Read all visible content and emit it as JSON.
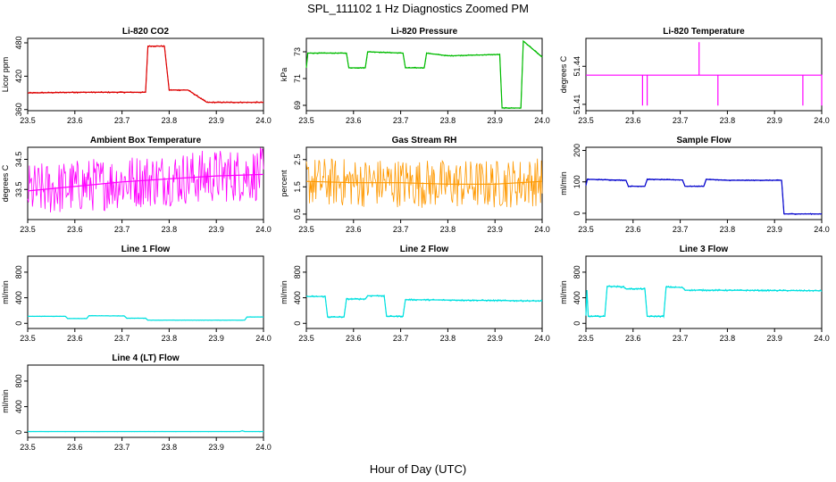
{
  "title": "SPL_111102  1 Hz Diagnostics Zoomed PM",
  "x_axis_label": "Hour of Day (UTC)",
  "chart_data": [
    {
      "type": "line",
      "title": "Li-820 CO2",
      "ylabel": "Licor ppm",
      "xlim": [
        23.5,
        24.0
      ],
      "ylim": [
        358,
        488
      ],
      "yticks": [
        "360",
        "420",
        "480"
      ],
      "ytick_values": [
        360,
        420,
        480
      ],
      "xticks": [
        "23.5",
        "23.6",
        "23.7",
        "23.8",
        "23.9",
        "24.0"
      ],
      "color": "#dd0000",
      "noise": 1.5,
      "x": [
        23.5,
        23.6,
        23.75,
        23.755,
        23.79,
        23.8,
        23.84,
        23.88,
        23.96,
        24.0
      ],
      "y": [
        390,
        391,
        391,
        474,
        474,
        395,
        395,
        373,
        373,
        373
      ]
    },
    {
      "type": "line",
      "title": "Li-820 Pressure",
      "ylabel": "kPa",
      "xlim": [
        23.5,
        24.0
      ],
      "ylim": [
        68.6,
        74.0
      ],
      "yticks": [
        "69",
        "71",
        "73"
      ],
      "ytick_values": [
        69,
        71,
        73
      ],
      "xticks": [
        "23.5",
        "23.6",
        "23.7",
        "23.8",
        "23.9",
        "24.0"
      ],
      "color": "#00bb00",
      "noise": 0.05,
      "x": [
        23.5,
        23.503,
        23.585,
        23.59,
        23.625,
        23.63,
        23.705,
        23.71,
        23.75,
        23.755,
        23.8,
        23.91,
        23.915,
        23.955,
        23.96,
        24.0
      ],
      "y": [
        71.8,
        72.9,
        72.9,
        71.8,
        71.8,
        73.0,
        72.9,
        71.8,
        71.8,
        72.9,
        72.7,
        72.8,
        68.8,
        68.8,
        73.8,
        72.6
      ]
    },
    {
      "type": "line",
      "title": "Li-820 Temperature",
      "ylabel": "degrees C",
      "xlim": [
        23.5,
        24.0
      ],
      "ylim": [
        51.405,
        51.462
      ],
      "yticks": [
        "51.41",
        "51.44"
      ],
      "ytick_values": [
        51.41,
        51.44
      ],
      "xticks": [
        "23.5",
        "23.6",
        "23.7",
        "23.8",
        "23.9",
        "24.0"
      ],
      "color": "#ff00ff",
      "noise": 0,
      "x": [
        23.5,
        23.62,
        23.62,
        23.62,
        23.63,
        23.63,
        23.63,
        23.74,
        23.74,
        23.74,
        23.78,
        23.78,
        23.78,
        23.96,
        23.96,
        23.96,
        24.0,
        24.0,
        24.0,
        24.0
      ],
      "y": [
        51.433,
        51.433,
        51.409,
        51.433,
        51.433,
        51.409,
        51.433,
        51.433,
        51.459,
        51.433,
        51.433,
        51.409,
        51.433,
        51.433,
        51.409,
        51.433,
        51.433,
        51.409,
        51.433,
        51.433
      ]
    },
    {
      "type": "line",
      "title": "Ambient Box Temperature",
      "ylabel": "degrees C",
      "xlim": [
        23.5,
        24.0
      ],
      "ylim": [
        32.5,
        34.9
      ],
      "yticks": [
        "33.5",
        "34.5"
      ],
      "ytick_values": [
        33.5,
        34.5
      ],
      "xticks": [
        "23.5",
        "23.6",
        "23.7",
        "23.8",
        "23.9",
        "24.0"
      ],
      "color": "#ff00ff",
      "noise": 0.9,
      "x": [
        23.5,
        23.6,
        23.7,
        23.8,
        23.9,
        24.0
      ],
      "y": [
        33.45,
        33.6,
        33.75,
        33.85,
        33.95,
        34.0
      ]
    },
    {
      "type": "line",
      "title": "Gas Stream RH",
      "ylabel": "percent",
      "xlim": [
        23.5,
        24.0
      ],
      "ylim": [
        0.3,
        2.95
      ],
      "yticks": [
        "0.5",
        "1.5",
        "2.5"
      ],
      "ytick_values": [
        0.5,
        1.5,
        2.5
      ],
      "xticks": [
        "23.5",
        "23.6",
        "23.7",
        "23.8",
        "23.9",
        "24.0"
      ],
      "color": "#ff9900",
      "noise": 0.9,
      "x": [
        23.5,
        23.6,
        23.7,
        23.8,
        23.9,
        24.0
      ],
      "y": [
        1.7,
        1.65,
        1.65,
        1.6,
        1.6,
        1.7
      ]
    },
    {
      "type": "line",
      "title": "Sample Flow",
      "ylabel": "ml/min",
      "xlim": [
        23.5,
        24.0
      ],
      "ylim": [
        -20,
        210
      ],
      "yticks": [
        "0",
        "100",
        "200"
      ],
      "ytick_values": [
        0,
        100,
        200
      ],
      "xticks": [
        "23.5",
        "23.6",
        "23.7",
        "23.8",
        "23.9",
        "24.0"
      ],
      "color": "#0000cc",
      "noise": 2,
      "x": [
        23.5,
        23.503,
        23.585,
        23.59,
        23.625,
        23.63,
        23.705,
        23.71,
        23.75,
        23.755,
        23.8,
        23.915,
        23.92,
        24.0
      ],
      "y": [
        88,
        108,
        105,
        86,
        86,
        108,
        106,
        86,
        86,
        108,
        105,
        105,
        -2,
        -2
      ]
    },
    {
      "type": "line",
      "title": "Line 1 Flow",
      "ylabel": "ml/min",
      "xlim": [
        23.5,
        24.0
      ],
      "ylim": [
        -80,
        1050
      ],
      "yticks": [
        "0",
        "400",
        "800"
      ],
      "ytick_values": [
        0,
        400,
        800
      ],
      "xticks": [
        "23.5",
        "23.6",
        "23.7",
        "23.8",
        "23.9",
        "24.0"
      ],
      "color": "#00e0e0",
      "noise": 5,
      "x": [
        23.5,
        23.58,
        23.585,
        23.625,
        23.63,
        23.705,
        23.71,
        23.75,
        23.755,
        23.96,
        23.965,
        24.0
      ],
      "y": [
        110,
        110,
        75,
        75,
        120,
        115,
        80,
        80,
        50,
        50,
        100,
        100
      ]
    },
    {
      "type": "line",
      "title": "Line 2 Flow",
      "ylabel": "ml/min",
      "xlim": [
        23.5,
        24.0
      ],
      "ylim": [
        -80,
        1050
      ],
      "yticks": [
        "0",
        "400",
        "800"
      ],
      "ytick_values": [
        0,
        400,
        800
      ],
      "xticks": [
        "23.5",
        "23.6",
        "23.7",
        "23.8",
        "23.9",
        "24.0"
      ],
      "color": "#00e0e0",
      "noise": 15,
      "x": [
        23.5,
        23.54,
        23.545,
        23.58,
        23.585,
        23.625,
        23.63,
        23.665,
        23.67,
        23.705,
        23.71,
        24.0
      ],
      "y": [
        420,
        420,
        100,
        100,
        380,
        380,
        430,
        430,
        110,
        110,
        370,
        350
      ]
    },
    {
      "type": "line",
      "title": "Line 3 Flow",
      "ylabel": "ml/min",
      "xlim": [
        23.5,
        24.0
      ],
      "ylim": [
        -80,
        1050
      ],
      "yticks": [
        "0",
        "400",
        "800"
      ],
      "ytick_values": [
        0,
        400,
        800
      ],
      "xticks": [
        "23.5",
        "23.6",
        "23.7",
        "23.8",
        "23.9",
        "24.0"
      ],
      "color": "#00e0e0",
      "noise": 15,
      "x": [
        23.5,
        23.502,
        23.505,
        23.54,
        23.545,
        23.58,
        23.585,
        23.625,
        23.63,
        23.665,
        23.67,
        23.705,
        23.71,
        24.0
      ],
      "y": [
        120,
        520,
        110,
        110,
        580,
        570,
        540,
        540,
        110,
        110,
        570,
        560,
        520,
        510
      ]
    },
    {
      "type": "line",
      "title": "Line 4 (LT) Flow",
      "ylabel": "ml/min",
      "xlim": [
        23.5,
        24.0
      ],
      "ylim": [
        -80,
        1050
      ],
      "yticks": [
        "0",
        "400",
        "800"
      ],
      "ytick_values": [
        0,
        400,
        800
      ],
      "xticks": [
        "23.5",
        "23.6",
        "23.7",
        "23.8",
        "23.9",
        "24.0"
      ],
      "color": "#00e0e0",
      "noise": 3,
      "x": [
        23.5,
        23.95,
        23.955,
        23.96,
        24.0
      ],
      "y": [
        10,
        10,
        25,
        10,
        10
      ]
    }
  ]
}
